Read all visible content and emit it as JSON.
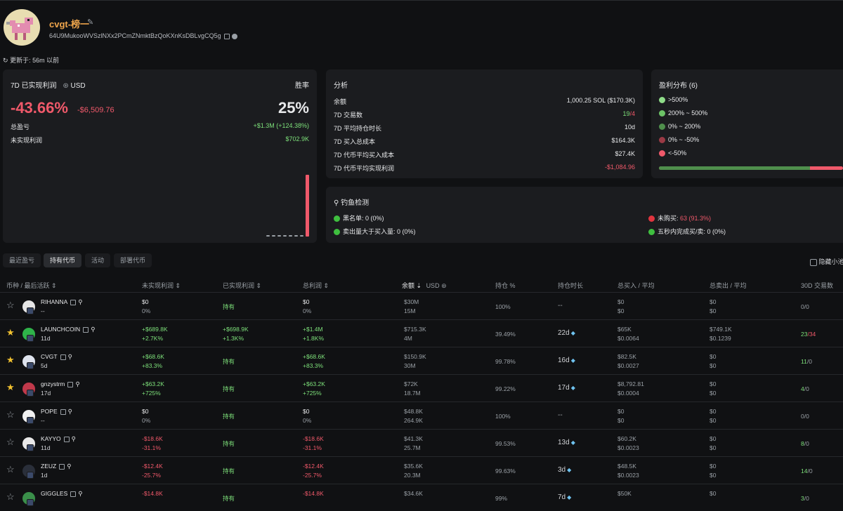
{
  "profile": {
    "name": "cvgt-榜一",
    "address": "64U9MukooWVSzlNXx2PCmZNmktBzQoKXnKsDBLvgCQ5g",
    "updated": "更新于: 56m 以前"
  },
  "pnl": {
    "title": "7D 已实现利润",
    "currency": "USD",
    "winrate_label": "胜率",
    "percent": "-43.66%",
    "amount": "-$6,509.76",
    "winrate": "25%",
    "total_label": "总盈亏",
    "total_value": "+$1.3M (+124.38%)",
    "unreal_label": "未实现利润",
    "unreal_value": "$702.9K"
  },
  "analysis": {
    "title": "分析",
    "rows": [
      {
        "label": "余额",
        "value": "1,000.25 SOL ($170.3K)",
        "color": "#e7e8ea"
      },
      {
        "label": "7D 交易数",
        "value": "19",
        "value2": "/4"
      },
      {
        "label": "7D 平均持仓时长",
        "value": "10d",
        "color": "#e7e8ea"
      },
      {
        "label": "7D 买入总成本",
        "value": "$164.3K",
        "color": "#e7e8ea"
      },
      {
        "label": "7D 代币平均买入成本",
        "value": "$27.4K",
        "color": "#e7e8ea"
      },
      {
        "label": "7D 代币平均实现利润",
        "value": "-$1,084.96",
        "color": "#f0596a"
      }
    ]
  },
  "distribution": {
    "title": "盈利分布 (6)",
    "items": [
      {
        "label": ">500%",
        "color": "#8fdc89"
      },
      {
        "label": "200% ~ 500%",
        "color": "#6cc266"
      },
      {
        "label": "0% ~ 200%",
        "color": "#4f8f4c"
      },
      {
        "label": "0% ~ -50%",
        "color": "#9a3a45"
      },
      {
        "label": "<-50%",
        "color": "#f0596a"
      }
    ]
  },
  "phishing": {
    "title": "钓鱼检测",
    "blacklist": "黑名单: 0 (0%)",
    "sold_more": "卖出量大于买入量: 0 (0%)",
    "not_bought": "未购买:",
    "not_bought_value": "63 (91.3%)",
    "fast": "五秒内完成买/卖: 0 (0%)"
  },
  "tabs": [
    "最近盈亏",
    "持有代币",
    "活动",
    "部署代币"
  ],
  "hide_small": "隐藏小池",
  "headers": {
    "token": "币种 / 最后活跃",
    "unreal": "未实现利润",
    "real": "已实现利润",
    "total": "总利润",
    "balance": "余额",
    "usd": "USD",
    "hold_pct": "持仓 %",
    "hold_time": "持仓时长",
    "bought": "总买入 / 平均",
    "sold": "总卖出 / 平均",
    "tx30": "30D 交易数"
  },
  "rows": [
    {
      "starred": false,
      "symbol": "RIHANNA",
      "last": "--",
      "unreal": "$0",
      "unreal_pct": "0%",
      "real": "持有",
      "total": "$0",
      "total_pct": "0%",
      "bal": "$30M",
      "bal_amt": "15M",
      "hold": "100%",
      "htime": "--",
      "buy": "$0",
      "buy_avg": "$0",
      "sell": "$0",
      "sell_avg": "$0",
      "tx_buy": "0",
      "tx_sell": "/0",
      "uc": "#e7e8ea",
      "tc": "#e7e8ea",
      "ic": "#e6e6e6"
    },
    {
      "starred": true,
      "symbol": "LAUNCHCOIN",
      "last": "11d",
      "unreal": "+$689.8K",
      "unreal_pct": "+2.7K%",
      "real": "+$698.9K",
      "real_pct": "+1.3K%",
      "total": "+$1.4M",
      "total_pct": "+1.8K%",
      "bal": "$715.3K",
      "bal_amt": "4M",
      "hold": "39.49%",
      "htime": "22d",
      "buy": "$65K",
      "buy_avg": "$0.0064",
      "sell": "$749.1K",
      "sell_avg": "$0.1239",
      "tx_buy": "23",
      "tx_sell": "/34",
      "uc": "#7de07a",
      "tc": "#7de07a",
      "ic": "#2fb34a"
    },
    {
      "starred": true,
      "symbol": "CVGT",
      "last": "5d",
      "unreal": "+$68.6K",
      "unreal_pct": "+83.3%",
      "real": "持有",
      "total": "+$68.6K",
      "total_pct": "+83.3%",
      "bal": "$150.9K",
      "bal_amt": "30M",
      "hold": "99.78%",
      "htime": "16d",
      "buy": "$82.5K",
      "buy_avg": "$0.0027",
      "sell": "$0",
      "sell_avg": "$0",
      "tx_buy": "11",
      "tx_sell": "/0",
      "uc": "#7de07a",
      "tc": "#7de07a",
      "ic": "#dfe4ee"
    },
    {
      "starred": true,
      "symbol": "gnzystrm",
      "last": "17d",
      "unreal": "+$63.2K",
      "unreal_pct": "+725%",
      "real": "持有",
      "total": "+$63.2K",
      "total_pct": "+725%",
      "bal": "$72K",
      "bal_amt": "18.7M",
      "hold": "99.22%",
      "htime": "17d",
      "buy": "$8,792.81",
      "buy_avg": "$0.0004",
      "sell": "$0",
      "sell_avg": "$0",
      "tx_buy": "4",
      "tx_sell": "/0",
      "uc": "#7de07a",
      "tc": "#7de07a",
      "ic": "#c0394b"
    },
    {
      "starred": false,
      "symbol": "POPE",
      "last": "--",
      "unreal": "$0",
      "unreal_pct": "0%",
      "real": "持有",
      "total": "$0",
      "total_pct": "0%",
      "bal": "$48.8K",
      "bal_amt": "264.9K",
      "hold": "100%",
      "htime": "--",
      "buy": "$0",
      "buy_avg": "$0",
      "sell": "$0",
      "sell_avg": "$0",
      "tx_buy": "0",
      "tx_sell": "/0",
      "uc": "#e7e8ea",
      "tc": "#e7e8ea",
      "ic": "#f1f1f1"
    },
    {
      "starred": false,
      "symbol": "KAYYO",
      "last": "11d",
      "unreal": "-$18.6K",
      "unreal_pct": "-31.1%",
      "real": "持有",
      "total": "-$18.6K",
      "total_pct": "-31.1%",
      "bal": "$41.3K",
      "bal_amt": "25.7M",
      "hold": "99.53%",
      "htime": "13d",
      "buy": "$60.2K",
      "buy_avg": "$0.0023",
      "sell": "$0",
      "sell_avg": "$0",
      "tx_buy": "8",
      "tx_sell": "/0",
      "uc": "#f0596a",
      "tc": "#f0596a",
      "ic": "#e9e9e9"
    },
    {
      "starred": false,
      "symbol": "ZEUZ",
      "last": "1d",
      "unreal": "-$12.4K",
      "unreal_pct": "-25.7%",
      "real": "持有",
      "total": "-$12.4K",
      "total_pct": "-25.7%",
      "bal": "$35.6K",
      "bal_amt": "20.3M",
      "hold": "99.63%",
      "htime": "3d",
      "buy": "$48.5K",
      "buy_avg": "$0.0023",
      "sell": "$0",
      "sell_avg": "$0",
      "tx_buy": "14",
      "tx_sell": "/0",
      "uc": "#f0596a",
      "tc": "#f0596a",
      "ic": "#2a2f3a"
    },
    {
      "starred": false,
      "symbol": "GIGGLES",
      "last": "",
      "unreal": "-$14.8K",
      "unreal_pct": "",
      "real": "持有",
      "total": "-$14.8K",
      "total_pct": "",
      "bal": "$34.6K",
      "bal_amt": "",
      "hold": "99%",
      "htime": "7d",
      "buy": "$50K",
      "buy_avg": "",
      "sell": "$0",
      "sell_avg": "",
      "tx_buy": "3",
      "tx_sell": "/0",
      "uc": "#f0596a",
      "tc": "#f0596a",
      "ic": "#3a8f4a"
    }
  ]
}
